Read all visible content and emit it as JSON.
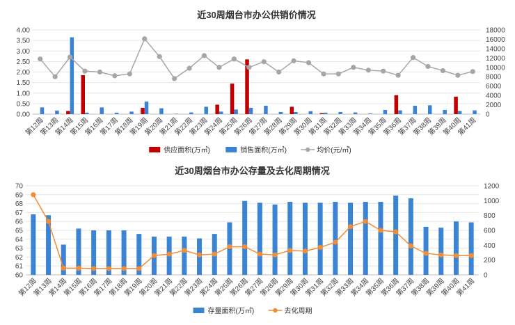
{
  "chart_data": [
    {
      "type": "bar",
      "title": "近30周烟台市办公供销价情况",
      "categories": [
        "第12周",
        "第13周",
        "第14周",
        "第15周",
        "第16周",
        "第17周",
        "第18周",
        "第19周",
        "第20周",
        "第21周",
        "第22周",
        "第23周",
        "第24周",
        "第25周",
        "第26周",
        "第27周",
        "第28周",
        "第29周",
        "第30周",
        "第31周",
        "第32周",
        "第33周",
        "第34周",
        "第35周",
        "第36周",
        "第37周",
        "第38周",
        "第39周",
        "第40周",
        "第41周"
      ],
      "y_left_ticks": [
        "0.00",
        "0.50",
        "1.00",
        "1.50",
        "2.00",
        "2.50",
        "3.00",
        "3.50",
        "4.00"
      ],
      "y_right_ticks": [
        "0",
        "2000",
        "4000",
        "6000",
        "8000",
        "10000",
        "12000",
        "14000",
        "16000",
        "18000"
      ],
      "ylim_left": [
        0,
        4
      ],
      "ylim_right": [
        0,
        18000
      ],
      "series": [
        {
          "name": "供应面积(万㎡)",
          "kind": "bar",
          "axis": "left",
          "color": "#c00000",
          "values": [
            0,
            0,
            0.15,
            1.85,
            0,
            0,
            0,
            0.3,
            0,
            0,
            0,
            0,
            0.45,
            1.45,
            2.6,
            0,
            0,
            0.35,
            0,
            0.05,
            0,
            0,
            0,
            0,
            0.9,
            0,
            0,
            0,
            0.83,
            0
          ]
        },
        {
          "name": "销售面积(万㎡)",
          "kind": "bar",
          "axis": "left",
          "color": "#3b84d4",
          "values": [
            0.32,
            0.17,
            3.65,
            0.07,
            0.32,
            0.07,
            0.12,
            0.6,
            0.28,
            0.02,
            0.08,
            0.35,
            0.12,
            0.22,
            0.3,
            0.4,
            0.1,
            0.1,
            0.14,
            0.07,
            0.1,
            0.08,
            0.03,
            0.2,
            0.18,
            0.4,
            0.42,
            0.2,
            0.15,
            0.18
          ]
        },
        {
          "name": "均价(元/㎡)",
          "kind": "line",
          "axis": "right",
          "color": "#a6a6a6",
          "values": [
            11800,
            8000,
            12200,
            9200,
            9000,
            8200,
            8600,
            16100,
            12300,
            7600,
            9800,
            12500,
            10000,
            11800,
            10000,
            11200,
            9000,
            11400,
            11000,
            8600,
            8600,
            10000,
            9400,
            9200,
            8300,
            12100,
            10200,
            9300,
            8300,
            9100
          ]
        }
      ]
    },
    {
      "type": "bar",
      "title": "近30周烟台市办公存量及去化周期情况",
      "categories": [
        "第12周",
        "第13周",
        "第14周",
        "第15周",
        "第16周",
        "第17周",
        "第18周",
        "第19周",
        "第20周",
        "第21周",
        "第22周",
        "第23周",
        "第24周",
        "第25周",
        "第26周",
        "第27周",
        "第28周",
        "第29周",
        "第30周",
        "第31周",
        "第32周",
        "第33周",
        "第34周",
        "第35周",
        "第36周",
        "第37周",
        "第38周",
        "第39周",
        "第40周",
        "第41周"
      ],
      "y_left_ticks": [
        "60",
        "61",
        "62",
        "63",
        "64",
        "65",
        "66",
        "67",
        "68",
        "69",
        "70"
      ],
      "y_right_ticks": [
        "0",
        "200",
        "400",
        "600",
        "800",
        "1000",
        "1200"
      ],
      "ylim_left": [
        60,
        70
      ],
      "ylim_right": [
        0,
        1200
      ],
      "series": [
        {
          "name": "存量面积(万㎡)",
          "kind": "bar",
          "axis": "left",
          "color": "#3b84d4",
          "values": [
            66.8,
            66.7,
            63.4,
            65.2,
            65.0,
            65.0,
            65.0,
            64.6,
            64.3,
            64.3,
            64.3,
            64.1,
            64.6,
            65.9,
            68.3,
            68.1,
            67.9,
            68.2,
            68.1,
            68.1,
            68.2,
            68.1,
            68.2,
            68.2,
            68.9,
            68.6,
            65.4,
            65.3,
            66.0,
            65.9
          ]
        },
        {
          "name": "去化周期",
          "kind": "line",
          "axis": "right",
          "color": "#f28c35",
          "values": [
            1080,
            720,
            90,
            90,
            85,
            85,
            85,
            85,
            260,
            280,
            330,
            270,
            280,
            380,
            380,
            280,
            270,
            330,
            320,
            370,
            440,
            650,
            720,
            600,
            580,
            390,
            290,
            270,
            260,
            260
          ]
        }
      ]
    }
  ]
}
